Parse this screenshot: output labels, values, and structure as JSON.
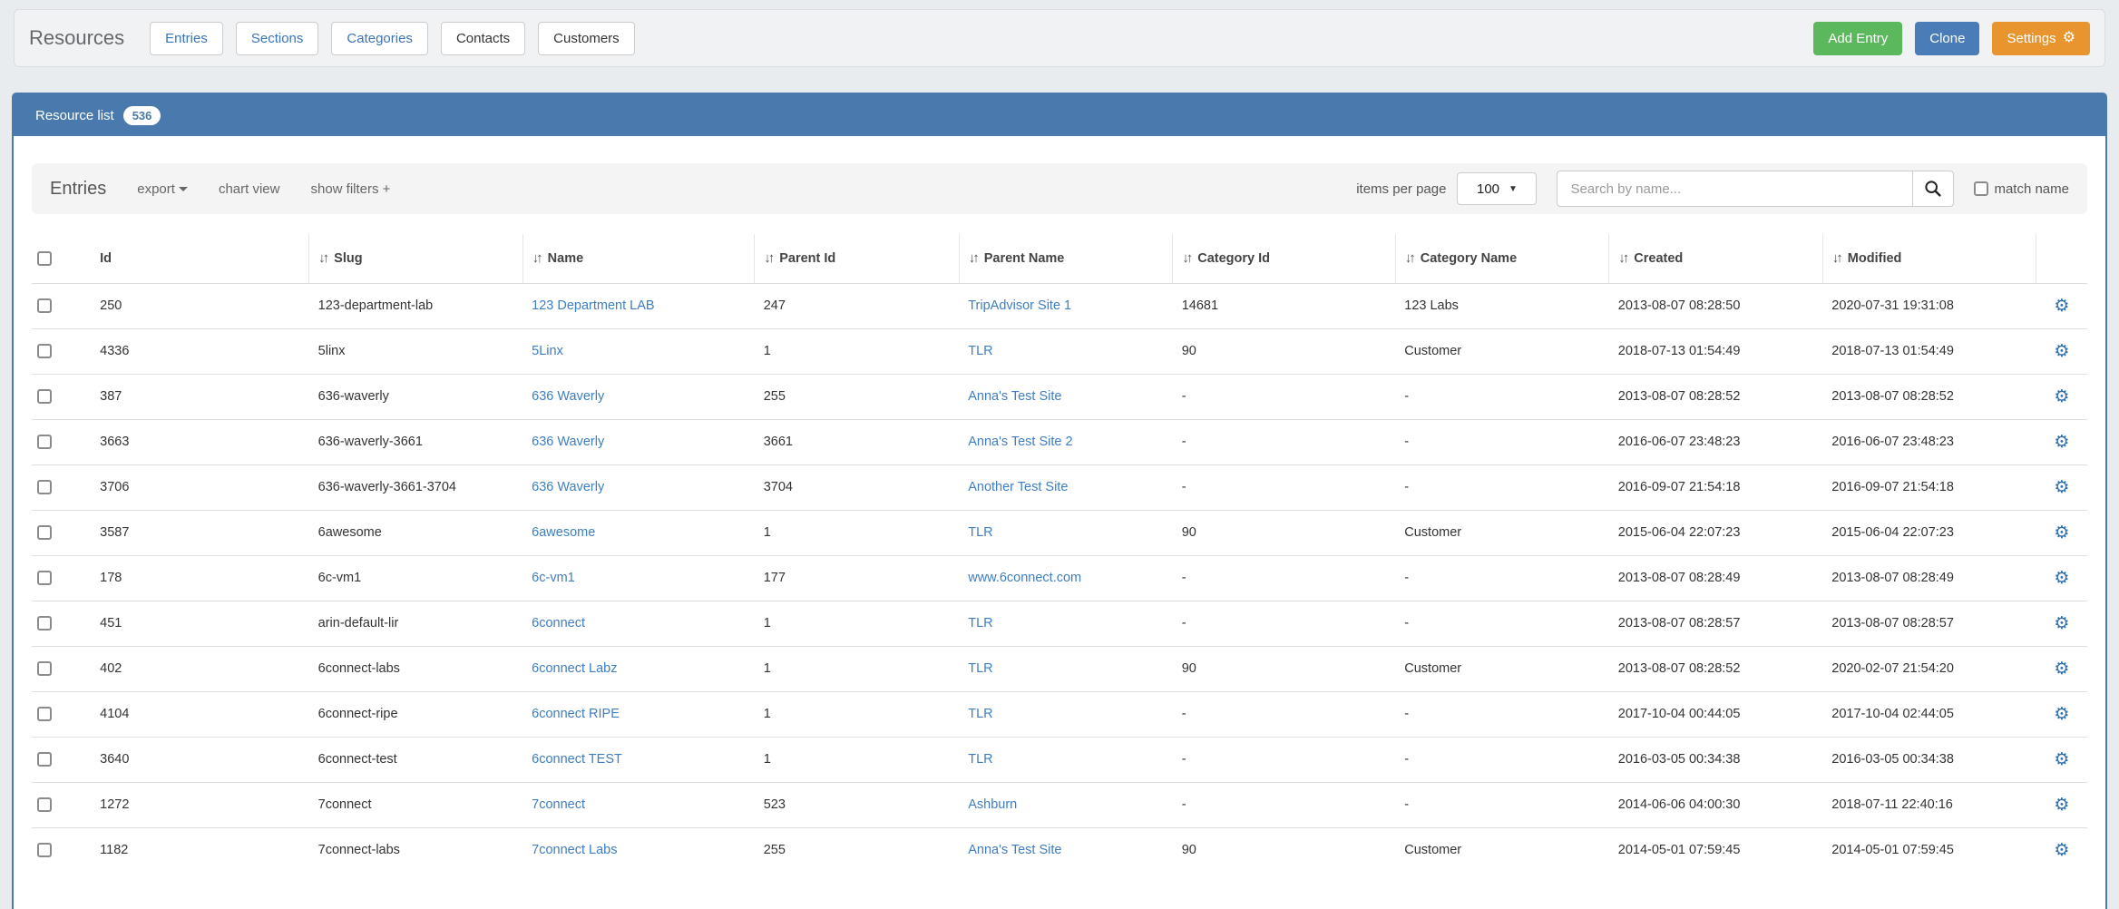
{
  "header": {
    "title": "Resources",
    "tabs": [
      {
        "label": "Entries",
        "style": "link"
      },
      {
        "label": "Sections",
        "style": "link"
      },
      {
        "label": "Categories",
        "style": "link"
      },
      {
        "label": "Contacts",
        "style": "dark"
      },
      {
        "label": "Customers",
        "style": "dark"
      }
    ],
    "actions": [
      {
        "label": "Add Entry",
        "variant": "success",
        "icon": null
      },
      {
        "label": "Clone",
        "variant": "primary",
        "icon": null
      },
      {
        "label": "Settings",
        "variant": "warning",
        "icon": "gear-icon"
      }
    ]
  },
  "panel": {
    "title": "Resource list",
    "count_badge": "536"
  },
  "toolbar": {
    "title": "Entries",
    "export_label": "export",
    "chart_view_label": "chart view",
    "show_filters_label": "show filters +",
    "items_per_page_label": "items per page",
    "items_per_page_value": "100",
    "search_placeholder": "Search by name...",
    "match_name_label": "match name"
  },
  "table": {
    "sort_glyph": "↓↑",
    "columns": [
      {
        "key": "id",
        "label": "Id",
        "sortable": false,
        "link": false
      },
      {
        "key": "slug",
        "label": "Slug",
        "sortable": true,
        "link": false
      },
      {
        "key": "name",
        "label": "Name",
        "sortable": true,
        "link": true
      },
      {
        "key": "parent_id",
        "label": "Parent Id",
        "sortable": true,
        "link": false
      },
      {
        "key": "parent_name",
        "label": "Parent Name",
        "sortable": true,
        "link": true
      },
      {
        "key": "category_id",
        "label": "Category Id",
        "sortable": true,
        "link": false
      },
      {
        "key": "category_name",
        "label": "Category Name",
        "sortable": true,
        "link": false
      },
      {
        "key": "created",
        "label": "Created",
        "sortable": true,
        "link": false
      },
      {
        "key": "modified",
        "label": "Modified",
        "sortable": true,
        "link": false
      }
    ],
    "rows": [
      {
        "id": "250",
        "slug": "123-department-lab",
        "name": "123 Department LAB",
        "parent_id": "247",
        "parent_name": "TripAdvisor Site 1",
        "category_id": "14681",
        "category_name": "123 Labs",
        "created": "2013-08-07 08:28:50",
        "modified": "2020-07-31 19:31:08"
      },
      {
        "id": "4336",
        "slug": "5linx",
        "name": "5Linx",
        "parent_id": "1",
        "parent_name": "TLR",
        "category_id": "90",
        "category_name": "Customer",
        "created": "2018-07-13 01:54:49",
        "modified": "2018-07-13 01:54:49"
      },
      {
        "id": "387",
        "slug": "636-waverly",
        "name": "636 Waverly",
        "parent_id": "255",
        "parent_name": "Anna's Test Site",
        "category_id": "-",
        "category_name": "-",
        "created": "2013-08-07 08:28:52",
        "modified": "2013-08-07 08:28:52"
      },
      {
        "id": "3663",
        "slug": "636-waverly-3661",
        "name": "636 Waverly",
        "parent_id": "3661",
        "parent_name": "Anna's Test Site 2",
        "category_id": "-",
        "category_name": "-",
        "created": "2016-06-07 23:48:23",
        "modified": "2016-06-07 23:48:23"
      },
      {
        "id": "3706",
        "slug": "636-waverly-3661-3704",
        "name": "636 Waverly",
        "parent_id": "3704",
        "parent_name": "Another Test Site",
        "category_id": "-",
        "category_name": "-",
        "created": "2016-09-07 21:54:18",
        "modified": "2016-09-07 21:54:18"
      },
      {
        "id": "3587",
        "slug": "6awesome",
        "name": "6awesome",
        "parent_id": "1",
        "parent_name": "TLR",
        "category_id": "90",
        "category_name": "Customer",
        "created": "2015-06-04 22:07:23",
        "modified": "2015-06-04 22:07:23"
      },
      {
        "id": "178",
        "slug": "6c-vm1",
        "name": "6c-vm1",
        "parent_id": "177",
        "parent_name": "www.6connect.com",
        "category_id": "-",
        "category_name": "-",
        "created": "2013-08-07 08:28:49",
        "modified": "2013-08-07 08:28:49"
      },
      {
        "id": "451",
        "slug": "arin-default-lir",
        "name": "6connect",
        "parent_id": "1",
        "parent_name": "TLR",
        "category_id": "-",
        "category_name": "-",
        "created": "2013-08-07 08:28:57",
        "modified": "2013-08-07 08:28:57"
      },
      {
        "id": "402",
        "slug": "6connect-labs",
        "name": "6connect Labz",
        "parent_id": "1",
        "parent_name": "TLR",
        "category_id": "90",
        "category_name": "Customer",
        "created": "2013-08-07 08:28:52",
        "modified": "2020-02-07 21:54:20"
      },
      {
        "id": "4104",
        "slug": "6connect-ripe",
        "name": "6connect RIPE",
        "parent_id": "1",
        "parent_name": "TLR",
        "category_id": "-",
        "category_name": "-",
        "created": "2017-10-04 00:44:05",
        "modified": "2017-10-04 02:44:05"
      },
      {
        "id": "3640",
        "slug": "6connect-test",
        "name": "6connect TEST",
        "parent_id": "1",
        "parent_name": "TLR",
        "category_id": "-",
        "category_name": "-",
        "created": "2016-03-05 00:34:38",
        "modified": "2016-03-05 00:34:38"
      },
      {
        "id": "1272",
        "slug": "7connect",
        "name": "7connect",
        "parent_id": "523",
        "parent_name": "Ashburn",
        "category_id": "-",
        "category_name": "-",
        "created": "2014-06-06 04:00:30",
        "modified": "2018-07-11 22:40:16"
      },
      {
        "id": "1182",
        "slug": "7connect-labs",
        "name": "7connect Labs",
        "parent_id": "255",
        "parent_name": "Anna's Test Site",
        "category_id": "90",
        "category_name": "Customer",
        "created": "2014-05-01 07:59:45",
        "modified": "2014-05-01 07:59:45"
      }
    ]
  },
  "colors": {
    "panel_blue": "#4a79ad",
    "link_blue": "#3e7ec2",
    "success_green": "#5cb85c",
    "primary_blue": "#4a7db8",
    "warning_orange": "#e8952f"
  }
}
